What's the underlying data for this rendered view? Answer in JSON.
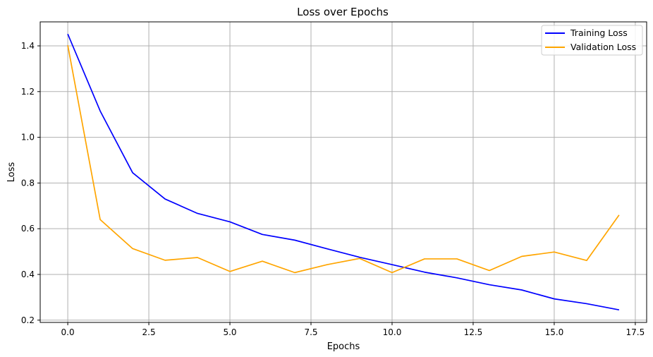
{
  "chart_data": {
    "type": "line",
    "title": "Loss over Epochs",
    "xlabel": "Epochs",
    "ylabel": "Loss",
    "xlim": [
      -0.85,
      17.85
    ],
    "ylim": [
      0.19,
      1.505
    ],
    "xticks": [
      0.0,
      2.5,
      5.0,
      7.5,
      10.0,
      12.5,
      15.0,
      17.5
    ],
    "xtick_labels": [
      "0.0",
      "2.5",
      "5.0",
      "7.5",
      "10.0",
      "12.5",
      "15.0",
      "17.5"
    ],
    "yticks": [
      0.2,
      0.4,
      0.6,
      0.8,
      1.0,
      1.2,
      1.4
    ],
    "ytick_labels": [
      "0.2",
      "0.4",
      "0.6",
      "0.8",
      "1.0",
      "1.2",
      "1.4"
    ],
    "grid": true,
    "legend_position": "top-right",
    "x": [
      0,
      1,
      2,
      3,
      4,
      5,
      6,
      7,
      8,
      9,
      10,
      11,
      12,
      13,
      14,
      15,
      16,
      17
    ],
    "series": [
      {
        "name": "Training Loss",
        "color": "#0000ff",
        "values": [
          1.452,
          1.115,
          0.845,
          0.73,
          0.667,
          0.63,
          0.575,
          0.55,
          0.512,
          0.475,
          0.443,
          0.41,
          0.385,
          0.355,
          0.332,
          0.293,
          0.272,
          0.245
        ]
      },
      {
        "name": "Validation Loss",
        "color": "#ffa500",
        "values": [
          1.403,
          0.64,
          0.513,
          0.462,
          0.474,
          0.413,
          0.458,
          0.408,
          0.443,
          0.47,
          0.408,
          0.468,
          0.468,
          0.417,
          0.479,
          0.498,
          0.461,
          0.66
        ]
      }
    ]
  }
}
